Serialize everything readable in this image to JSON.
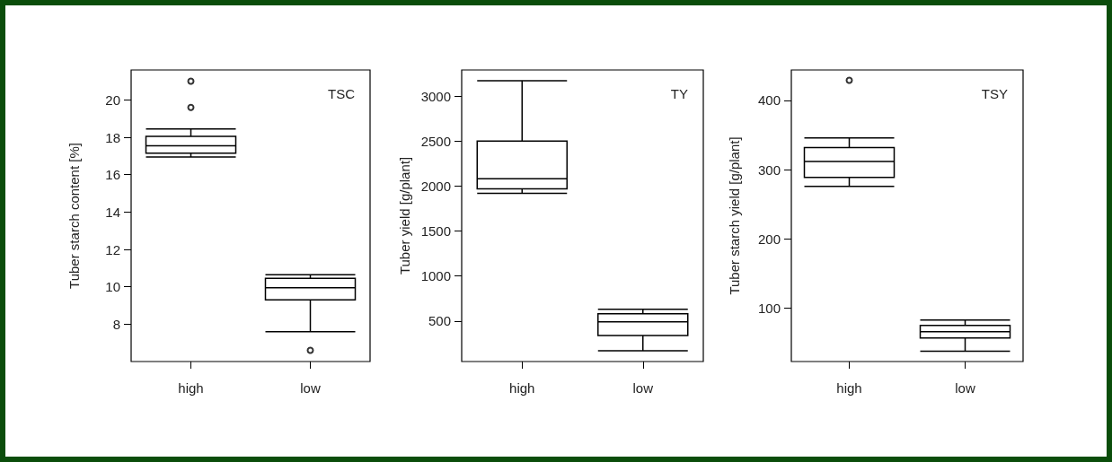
{
  "chart_data": [
    {
      "type": "box",
      "categories": [
        "high",
        "low"
      ],
      "ylabel": "Tuber starch content [%]",
      "ylim": [
        6.0,
        21.6
      ],
      "yticks": [
        8,
        10,
        12,
        14,
        16,
        18,
        20
      ],
      "grid": false,
      "annotations": [
        "TSC"
      ],
      "boxes": [
        {
          "low": 16.95,
          "q1": 17.15,
          "median": 17.55,
          "q3": 18.05,
          "high": 18.45,
          "outliers": [
            19.6,
            21.0
          ]
        },
        {
          "low": 7.6,
          "q1": 9.3,
          "median": 9.95,
          "q3": 10.45,
          "high": 10.65,
          "outliers": [
            6.6
          ]
        }
      ]
    },
    {
      "type": "box",
      "categories": [
        "high",
        "low"
      ],
      "ylabel": "Tuber yield [g/plant]",
      "ylim": [
        50,
        3290
      ],
      "yticks": [
        500,
        1000,
        1500,
        2000,
        2500,
        3000
      ],
      "grid": false,
      "annotations": [
        "TY"
      ],
      "boxes": [
        {
          "low": 1920,
          "q1": 1970,
          "median": 2080,
          "q3": 2500,
          "high": 3170
        },
        {
          "low": 170,
          "q1": 340,
          "median": 490,
          "q3": 580,
          "high": 630
        }
      ]
    },
    {
      "type": "box",
      "categories": [
        "high",
        "low"
      ],
      "ylabel": "Tuber starch yield [g/plant]",
      "ylim": [
        23,
        444
      ],
      "yticks": [
        100,
        200,
        300,
        400
      ],
      "grid": false,
      "annotations": [
        "TSY"
      ],
      "boxes": [
        {
          "low": 276,
          "q1": 289,
          "median": 312,
          "q3": 332,
          "high": 346,
          "outliers": [
            429
          ]
        },
        {
          "low": 38,
          "q1": 57,
          "median": 66,
          "q3": 75,
          "high": 83
        }
      ]
    }
  ]
}
